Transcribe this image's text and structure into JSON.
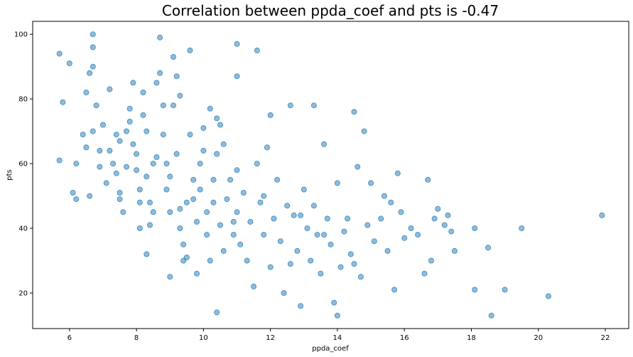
{
  "chart_data": {
    "type": "scatter",
    "title": "Correlation between ppda_coef and pts is -0.47",
    "xlabel": "ppda_coef",
    "ylabel": "pts",
    "xlim": [
      4.9,
      22.7
    ],
    "ylim": [
      9,
      104
    ],
    "xticks": [
      6,
      8,
      10,
      12,
      14,
      16,
      18,
      20,
      22
    ],
    "yticks": [
      20,
      40,
      60,
      80,
      100
    ],
    "grid": false,
    "point_color": "#1f77b4",
    "point_opacity": 0.5,
    "points": [
      [
        5.7,
        94
      ],
      [
        5.7,
        61
      ],
      [
        5.8,
        79
      ],
      [
        6.0,
        91
      ],
      [
        6.1,
        51
      ],
      [
        6.2,
        49
      ],
      [
        6.2,
        60
      ],
      [
        6.4,
        69
      ],
      [
        6.5,
        82
      ],
      [
        6.5,
        65
      ],
      [
        6.6,
        50
      ],
      [
        6.6,
        88
      ],
      [
        6.7,
        100
      ],
      [
        6.7,
        96
      ],
      [
        6.7,
        90
      ],
      [
        6.8,
        78
      ],
      [
        6.7,
        70
      ],
      [
        6.9,
        64
      ],
      [
        6.9,
        59
      ],
      [
        7.0,
        72
      ],
      [
        7.1,
        54
      ],
      [
        7.2,
        83
      ],
      [
        7.2,
        64
      ],
      [
        7.3,
        60
      ],
      [
        7.4,
        69
      ],
      [
        7.4,
        57
      ],
      [
        7.5,
        51
      ],
      [
        7.5,
        49
      ],
      [
        7.6,
        45
      ],
      [
        7.7,
        59
      ],
      [
        7.7,
        70
      ],
      [
        7.8,
        77
      ],
      [
        7.8,
        73
      ],
      [
        7.9,
        85
      ],
      [
        7.9,
        66
      ],
      [
        8.0,
        63
      ],
      [
        8.0,
        58
      ],
      [
        8.1,
        52
      ],
      [
        8.1,
        48
      ],
      [
        8.2,
        82
      ],
      [
        8.2,
        75
      ],
      [
        8.3,
        70
      ],
      [
        8.3,
        56
      ],
      [
        8.4,
        48
      ],
      [
        8.4,
        41
      ],
      [
        8.5,
        45
      ],
      [
        8.6,
        62
      ],
      [
        8.6,
        85
      ],
      [
        8.7,
        99
      ],
      [
        8.7,
        88
      ],
      [
        8.8,
        69
      ],
      [
        8.9,
        60
      ],
      [
        8.9,
        52
      ],
      [
        9.0,
        45
      ],
      [
        9.0,
        56
      ],
      [
        9.1,
        78
      ],
      [
        9.1,
        93
      ],
      [
        9.2,
        87
      ],
      [
        9.2,
        63
      ],
      [
        9.3,
        46
      ],
      [
        9.3,
        40
      ],
      [
        9.4,
        35
      ],
      [
        9.5,
        31
      ],
      [
        9.5,
        48
      ],
      [
        9.6,
        69
      ],
      [
        9.6,
        95
      ],
      [
        9.7,
        55
      ],
      [
        9.7,
        49
      ],
      [
        9.8,
        42
      ],
      [
        9.8,
        26
      ],
      [
        9.9,
        60
      ],
      [
        10.0,
        71
      ],
      [
        10.0,
        64
      ],
      [
        10.1,
        38
      ],
      [
        10.1,
        45
      ],
      [
        10.2,
        30
      ],
      [
        10.3,
        48
      ],
      [
        10.3,
        55
      ],
      [
        10.4,
        63
      ],
      [
        10.4,
        74
      ],
      [
        10.5,
        72
      ],
      [
        10.5,
        41
      ],
      [
        10.6,
        33
      ],
      [
        10.6,
        66
      ],
      [
        10.7,
        49
      ],
      [
        10.8,
        55
      ],
      [
        10.9,
        38
      ],
      [
        11.0,
        97
      ],
      [
        11.0,
        58
      ],
      [
        11.0,
        45
      ],
      [
        11.1,
        35
      ],
      [
        11.2,
        51
      ],
      [
        11.3,
        30
      ],
      [
        11.4,
        42
      ],
      [
        11.5,
        22
      ],
      [
        11.6,
        60
      ],
      [
        11.6,
        95
      ],
      [
        11.7,
        48
      ],
      [
        11.8,
        38
      ],
      [
        11.9,
        65
      ],
      [
        12.0,
        28
      ],
      [
        12.0,
        75
      ],
      [
        12.1,
        43
      ],
      [
        12.2,
        55
      ],
      [
        12.3,
        36
      ],
      [
        12.4,
        20
      ],
      [
        12.5,
        47
      ],
      [
        12.6,
        78
      ],
      [
        12.7,
        44
      ],
      [
        12.8,
        33
      ],
      [
        12.9,
        16
      ],
      [
        13.0,
        52
      ],
      [
        13.1,
        40
      ],
      [
        13.2,
        30
      ],
      [
        13.3,
        78
      ],
      [
        13.3,
        47
      ],
      [
        13.4,
        38
      ],
      [
        13.5,
        26
      ],
      [
        13.6,
        66
      ],
      [
        13.7,
        43
      ],
      [
        13.8,
        35
      ],
      [
        13.9,
        17
      ],
      [
        14.0,
        54
      ],
      [
        14.1,
        28
      ],
      [
        14.2,
        39
      ],
      [
        14.3,
        43
      ],
      [
        14.4,
        32
      ],
      [
        14.5,
        29
      ],
      [
        14.5,
        76
      ],
      [
        14.6,
        59
      ],
      [
        14.7,
        25
      ],
      [
        14.8,
        70
      ],
      [
        14.9,
        41
      ],
      [
        15.0,
        54
      ],
      [
        15.1,
        36
      ],
      [
        15.3,
        43
      ],
      [
        15.4,
        50
      ],
      [
        15.5,
        33
      ],
      [
        15.6,
        48
      ],
      [
        15.7,
        21
      ],
      [
        15.8,
        57
      ],
      [
        15.9,
        45
      ],
      [
        16.0,
        37
      ],
      [
        16.2,
        40
      ],
      [
        16.4,
        38
      ],
      [
        16.6,
        26
      ],
      [
        16.7,
        55
      ],
      [
        16.8,
        30
      ],
      [
        16.9,
        43
      ],
      [
        17.0,
        46
      ],
      [
        17.2,
        41
      ],
      [
        17.3,
        44
      ],
      [
        17.4,
        39
      ],
      [
        17.5,
        33
      ],
      [
        18.1,
        40
      ],
      [
        18.1,
        21
      ],
      [
        18.5,
        34
      ],
      [
        18.6,
        13
      ],
      [
        19.0,
        21
      ],
      [
        19.5,
        40
      ],
      [
        20.3,
        19
      ],
      [
        21.9,
        44
      ],
      [
        10.4,
        14
      ],
      [
        14.0,
        13
      ],
      [
        12.6,
        29
      ],
      [
        8.1,
        40
      ],
      [
        8.3,
        32
      ],
      [
        9.0,
        25
      ],
      [
        9.4,
        30
      ],
      [
        8.5,
        60
      ],
      [
        9.9,
        52
      ],
      [
        10.9,
        42
      ],
      [
        11.8,
        50
      ],
      [
        12.9,
        44
      ],
      [
        13.6,
        38
      ],
      [
        7.5,
        67
      ],
      [
        8.8,
        78
      ],
      [
        9.3,
        81
      ],
      [
        10.2,
        77
      ],
      [
        11.0,
        87
      ]
    ]
  }
}
